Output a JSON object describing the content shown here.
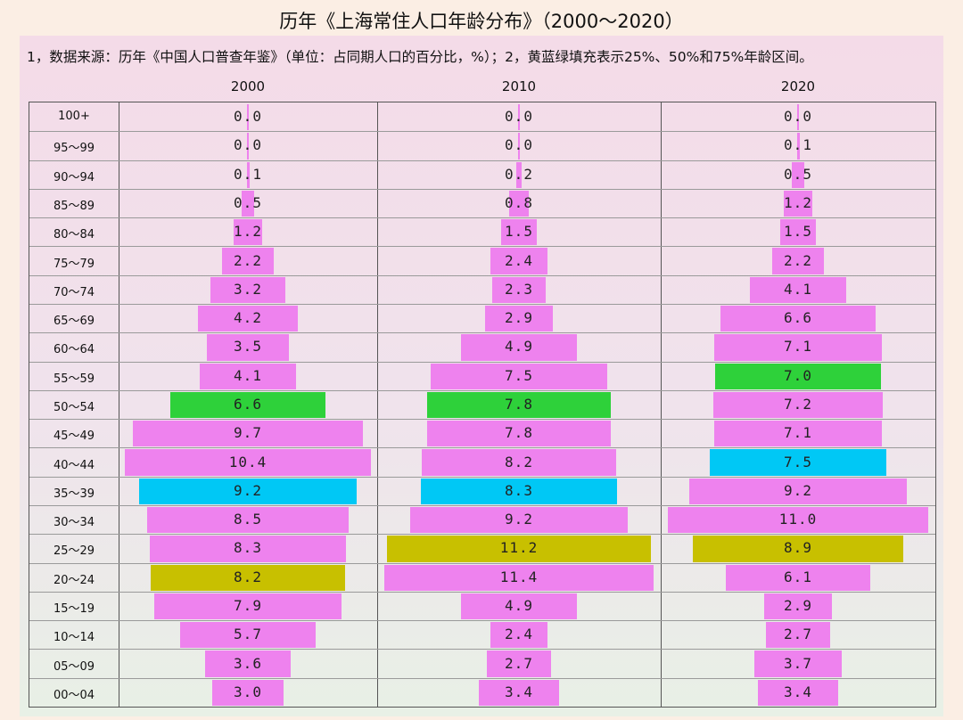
{
  "title": "历年《上海常住人口年龄分布》（2000～2020）",
  "note": "1，数据来源：历年《中国人口普查年鉴》（单位：占同期人口的百分比，%）；2，黄蓝绿填充表示25%、50%和75%年龄区间。",
  "colors": {
    "default": "#ee82ee",
    "p25": "#c8c000",
    "p50": "#00c8f5",
    "p75": "#2ed13a"
  },
  "chart_data": {
    "type": "bar",
    "title": "历年《上海常住人口年龄分布》（2000～2020）",
    "categories": [
      "100+",
      "95～99",
      "90～94",
      "85～89",
      "80～84",
      "75～79",
      "70～74",
      "65～69",
      "60～64",
      "55～59",
      "50～54",
      "45～49",
      "40～44",
      "35～39",
      "30～34",
      "25～29",
      "20～24",
      "15～19",
      "10～14",
      "05～09",
      "00～04"
    ],
    "series": [
      {
        "name": "2000",
        "values": [
          "0.0",
          "0.0",
          "0.1",
          "0.5",
          "1.2",
          "2.2",
          "3.2",
          "4.2",
          "3.5",
          "4.1",
          "6.6",
          "9.7",
          "10.4",
          "9.2",
          "8.5",
          "8.3",
          "8.2",
          "7.9",
          "5.7",
          "3.6",
          "3.0"
        ],
        "highlights": {
          "10": "p75",
          "13": "p50",
          "16": "p25"
        }
      },
      {
        "name": "2010",
        "values": [
          "0.0",
          "0.0",
          "0.2",
          "0.8",
          "1.5",
          "2.4",
          "2.3",
          "2.9",
          "4.9",
          "7.5",
          "7.8",
          "7.8",
          "8.2",
          "8.3",
          "9.2",
          "11.2",
          "11.4",
          "4.9",
          "2.4",
          "2.7",
          "3.4"
        ],
        "highlights": {
          "10": "p75",
          "13": "p50",
          "15": "p25"
        }
      },
      {
        "name": "2020",
        "values": [
          "0.0",
          "0.1",
          "0.5",
          "1.2",
          "1.5",
          "2.2",
          "4.1",
          "6.6",
          "7.1",
          "7.0",
          "7.2",
          "7.1",
          "7.5",
          "9.2",
          "11.0",
          "8.9",
          "6.1",
          "2.9",
          "2.7",
          "3.7",
          "3.4"
        ],
        "highlights": {
          "9": "p75",
          "12": "p50",
          "15": "p25"
        }
      }
    ]
  }
}
